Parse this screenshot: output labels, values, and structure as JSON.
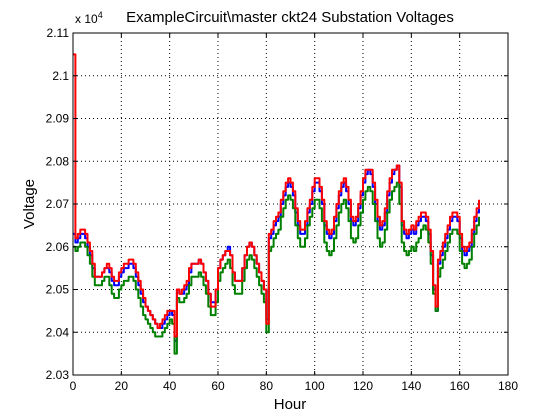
{
  "chart_data": {
    "type": "line",
    "title": "ExampleCircuit\\master ckt24 Substation Voltages",
    "xlabel": "Hour",
    "ylabel": "Voltage",
    "y_multiplier_text": "x 10",
    "y_multiplier_exponent": "4",
    "xlim": [
      0,
      180
    ],
    "ylim": [
      2.03,
      2.11
    ],
    "x_ticks": [
      0,
      20,
      40,
      60,
      80,
      100,
      120,
      140,
      160,
      180
    ],
    "y_ticks": [
      2.03,
      2.04,
      2.05,
      2.06,
      2.07,
      2.08,
      2.09,
      2.1,
      2.11
    ],
    "x_tick_labels": [
      "0",
      "20",
      "40",
      "60",
      "80",
      "100",
      "120",
      "140",
      "160",
      "180"
    ],
    "y_tick_labels": [
      "2.03",
      "2.04",
      "2.05",
      "2.06",
      "2.07",
      "2.08",
      "2.09",
      "2.1",
      "2.11"
    ],
    "grid": true,
    "x": [
      0,
      1,
      2,
      3,
      4,
      5,
      6,
      7,
      8,
      9,
      10,
      11,
      12,
      13,
      14,
      15,
      16,
      17,
      18,
      19,
      20,
      21,
      22,
      23,
      24,
      25,
      26,
      27,
      28,
      29,
      30,
      31,
      32,
      33,
      34,
      35,
      36,
      37,
      38,
      39,
      40,
      41,
      42,
      43,
      44,
      45,
      46,
      47,
      48,
      49,
      50,
      51,
      52,
      53,
      54,
      55,
      56,
      57,
      58,
      59,
      60,
      61,
      62,
      63,
      64,
      65,
      66,
      67,
      68,
      69,
      70,
      71,
      72,
      73,
      74,
      75,
      76,
      77,
      78,
      79,
      80,
      81,
      82,
      83,
      84,
      85,
      86,
      87,
      88,
      89,
      90,
      91,
      92,
      93,
      94,
      95,
      96,
      97,
      98,
      99,
      100,
      101,
      102,
      103,
      104,
      105,
      106,
      107,
      108,
      109,
      110,
      111,
      112,
      113,
      114,
      115,
      116,
      117,
      118,
      119,
      120,
      121,
      122,
      123,
      124,
      125,
      126,
      127,
      128,
      129,
      130,
      131,
      132,
      133,
      134,
      135,
      136,
      137,
      138,
      139,
      140,
      141,
      142,
      143,
      144,
      145,
      146,
      147,
      148,
      149,
      150,
      151,
      152,
      153,
      154,
      155,
      156,
      157,
      158,
      159,
      160,
      161,
      162,
      163,
      164,
      165,
      166,
      167,
      168
    ],
    "series": [
      {
        "color": "#0000ff",
        "values": [
          2.063,
          2.061,
          2.062,
          2.063,
          2.063,
          2.062,
          2.06,
          2.058,
          2.055,
          2.053,
          2.053,
          2.053,
          2.054,
          2.055,
          2.055,
          2.054,
          2.052,
          2.051,
          2.051,
          2.053,
          2.054,
          2.055,
          2.055,
          2.056,
          2.056,
          2.055,
          2.053,
          2.051,
          2.049,
          2.047,
          2.046,
          2.045,
          2.044,
          2.043,
          2.042,
          2.041,
          2.041,
          2.042,
          2.043,
          2.044,
          2.045,
          2.044,
          2.038,
          2.05,
          2.049,
          2.049,
          2.05,
          2.051,
          2.054,
          2.056,
          2.056,
          2.056,
          2.057,
          2.056,
          2.054,
          2.052,
          2.049,
          2.047,
          2.047,
          2.05,
          2.055,
          2.057,
          2.058,
          2.059,
          2.06,
          2.058,
          2.054,
          2.052,
          2.052,
          2.052,
          2.055,
          2.058,
          2.06,
          2.061,
          2.06,
          2.058,
          2.056,
          2.054,
          2.052,
          2.05,
          2.043,
          2.062,
          2.063,
          2.065,
          2.066,
          2.067,
          2.07,
          2.072,
          2.074,
          2.075,
          2.074,
          2.072,
          2.068,
          2.065,
          2.063,
          2.063,
          2.065,
          2.068,
          2.07,
          2.073,
          2.075,
          2.075,
          2.073,
          2.07,
          2.065,
          2.063,
          2.062,
          2.063,
          2.066,
          2.069,
          2.072,
          2.074,
          2.075,
          2.073,
          2.07,
          2.066,
          2.065,
          2.066,
          2.069,
          2.072,
          2.075,
          2.077,
          2.078,
          2.077,
          2.074,
          2.07,
          2.066,
          2.064,
          2.065,
          2.068,
          2.072,
          2.075,
          2.077,
          2.078,
          2.079,
          2.074,
          2.065,
          2.063,
          2.062,
          2.063,
          2.064,
          2.063,
          2.065,
          2.066,
          2.067,
          2.067,
          2.066,
          2.063,
          2.058,
          2.05,
          2.045,
          2.056,
          2.058,
          2.06,
          2.062,
          2.064,
          2.066,
          2.067,
          2.067,
          2.066,
          2.062,
          2.059,
          2.058,
          2.059,
          2.06,
          2.063,
          2.066,
          2.068,
          2.07
        ]
      },
      {
        "color": "#008000",
        "values": [
          2.06,
          2.059,
          2.06,
          2.061,
          2.061,
          2.06,
          2.058,
          2.056,
          2.053,
          2.051,
          2.051,
          2.051,
          2.052,
          2.053,
          2.053,
          2.051,
          2.049,
          2.048,
          2.048,
          2.05,
          2.051,
          2.052,
          2.052,
          2.053,
          2.053,
          2.052,
          2.05,
          2.048,
          2.046,
          2.044,
          2.043,
          2.042,
          2.041,
          2.04,
          2.039,
          2.039,
          2.039,
          2.04,
          2.041,
          2.042,
          2.043,
          2.042,
          2.035,
          2.048,
          2.047,
          2.047,
          2.048,
          2.049,
          2.051,
          2.053,
          2.053,
          2.053,
          2.054,
          2.053,
          2.051,
          2.049,
          2.046,
          2.044,
          2.044,
          2.047,
          2.052,
          2.054,
          2.055,
          2.056,
          2.057,
          2.055,
          2.051,
          2.049,
          2.049,
          2.049,
          2.052,
          2.055,
          2.057,
          2.058,
          2.057,
          2.055,
          2.053,
          2.051,
          2.049,
          2.047,
          2.04,
          2.059,
          2.06,
          2.062,
          2.063,
          2.064,
          2.067,
          2.069,
          2.071,
          2.072,
          2.071,
          2.069,
          2.065,
          2.062,
          2.06,
          2.06,
          2.062,
          2.065,
          2.067,
          2.069,
          2.071,
          2.071,
          2.069,
          2.066,
          2.061,
          2.059,
          2.058,
          2.059,
          2.062,
          2.065,
          2.068,
          2.07,
          2.071,
          2.069,
          2.066,
          2.062,
          2.061,
          2.062,
          2.065,
          2.068,
          2.071,
          2.073,
          2.074,
          2.073,
          2.07,
          2.066,
          2.062,
          2.06,
          2.061,
          2.064,
          2.068,
          2.071,
          2.073,
          2.074,
          2.075,
          2.07,
          2.061,
          2.059,
          2.058,
          2.059,
          2.06,
          2.059,
          2.061,
          2.062,
          2.064,
          2.065,
          2.064,
          2.061,
          2.056,
          2.049,
          2.045,
          2.053,
          2.055,
          2.057,
          2.059,
          2.061,
          2.063,
          2.064,
          2.064,
          2.063,
          2.059,
          2.056,
          2.055,
          2.056,
          2.057,
          2.06,
          2.063,
          2.065,
          2.067
        ]
      },
      {
        "color": "#ff0000",
        "values": [
          2.105,
          2.062,
          2.063,
          2.064,
          2.064,
          2.063,
          2.061,
          2.059,
          2.056,
          2.053,
          2.053,
          2.053,
          2.054,
          2.055,
          2.056,
          2.055,
          2.053,
          2.052,
          2.052,
          2.054,
          2.055,
          2.056,
          2.056,
          2.057,
          2.057,
          2.056,
          2.054,
          2.052,
          2.05,
          2.048,
          2.046,
          2.045,
          2.044,
          2.043,
          2.042,
          2.041,
          2.042,
          2.043,
          2.044,
          2.045,
          2.045,
          2.045,
          2.039,
          2.05,
          2.049,
          2.05,
          2.051,
          2.052,
          2.055,
          2.056,
          2.056,
          2.056,
          2.057,
          2.056,
          2.054,
          2.052,
          2.049,
          2.046,
          2.046,
          2.05,
          2.055,
          2.057,
          2.058,
          2.059,
          2.059,
          2.058,
          2.054,
          2.052,
          2.052,
          2.052,
          2.055,
          2.058,
          2.06,
          2.061,
          2.06,
          2.058,
          2.056,
          2.054,
          2.052,
          2.05,
          2.042,
          2.063,
          2.064,
          2.066,
          2.067,
          2.068,
          2.071,
          2.073,
          2.075,
          2.076,
          2.075,
          2.073,
          2.069,
          2.066,
          2.064,
          2.064,
          2.066,
          2.069,
          2.071,
          2.074,
          2.076,
          2.076,
          2.074,
          2.071,
          2.066,
          2.064,
          2.063,
          2.064,
          2.067,
          2.07,
          2.073,
          2.075,
          2.076,
          2.074,
          2.071,
          2.067,
          2.066,
          2.067,
          2.07,
          2.073,
          2.076,
          2.078,
          2.078,
          2.078,
          2.075,
          2.071,
          2.067,
          2.065,
          2.066,
          2.069,
          2.073,
          2.076,
          2.078,
          2.078,
          2.079,
          2.075,
          2.066,
          2.064,
          2.063,
          2.064,
          2.065,
          2.064,
          2.066,
          2.067,
          2.068,
          2.068,
          2.067,
          2.064,
          2.059,
          2.051,
          2.046,
          2.057,
          2.059,
          2.061,
          2.063,
          2.065,
          2.067,
          2.068,
          2.068,
          2.067,
          2.063,
          2.06,
          2.059,
          2.06,
          2.061,
          2.064,
          2.067,
          2.069,
          2.071
        ]
      }
    ]
  }
}
